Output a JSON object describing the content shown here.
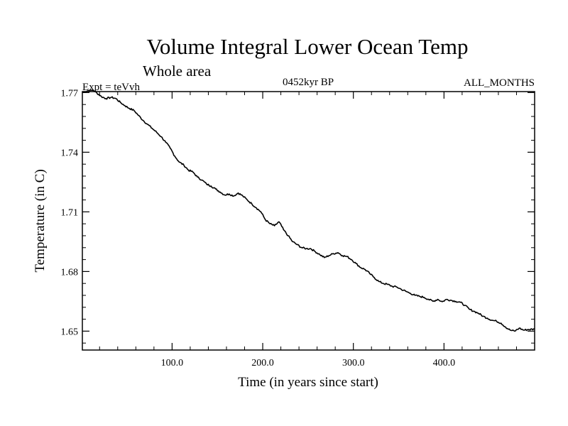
{
  "chart_data": {
    "type": "line",
    "title": "Volume Integral Lower Ocean Temp",
    "subtitle": "Whole area",
    "left_label": "Expt = teVvh",
    "center_label": "0452kyr BP",
    "right_label": "ALL_MONTHS",
    "xlabel": "Time (in years since start)",
    "ylabel": "Temperature (in C)",
    "xlim": [
      1,
      500
    ],
    "ylim": [
      1.6405,
      1.7705
    ],
    "x_ticks": [
      100,
      200,
      300,
      400
    ],
    "x_tick_labels": [
      "100.0",
      "200.0",
      "300.0",
      "400.0"
    ],
    "y_ticks": [
      1.65,
      1.68,
      1.71,
      1.74,
      1.77
    ],
    "y_tick_labels": [
      "1.65",
      "1.68",
      "1.71",
      "1.74",
      "1.77"
    ],
    "x_minor_step": 20,
    "y_minor_step": 0.006,
    "grid": false,
    "legend": "none",
    "line_color": "#000000",
    "series": [
      {
        "x": [
          1,
          8,
          13,
          17,
          22,
          27,
          33,
          38,
          43,
          48,
          53,
          58,
          63,
          68,
          73,
          78,
          83,
          88,
          93,
          98,
          103,
          108,
          113,
          118,
          123,
          128,
          133,
          138,
          143,
          148,
          153,
          158,
          163,
          168,
          173,
          178,
          183,
          188,
          193,
          198,
          203,
          208,
          213,
          218,
          223,
          228,
          233,
          238,
          243,
          248,
          253,
          258,
          263,
          268,
          273,
          278,
          283,
          288,
          293,
          298,
          303,
          308,
          313,
          318,
          323,
          328,
          333,
          338,
          343,
          348,
          353,
          358,
          363,
          368,
          373,
          378,
          383,
          388,
          393,
          398,
          403,
          408,
          413,
          418,
          423,
          428,
          433,
          438,
          443,
          448,
          453,
          458,
          463,
          468,
          473,
          478,
          483,
          488,
          493,
          500
        ],
        "y": [
          1.77,
          1.771,
          1.7712,
          1.7698,
          1.768,
          1.767,
          1.7676,
          1.767,
          1.765,
          1.7634,
          1.762,
          1.761,
          1.7585,
          1.756,
          1.754,
          1.752,
          1.75,
          1.7478,
          1.745,
          1.742,
          1.738,
          1.735,
          1.7335,
          1.731,
          1.73,
          1.7275,
          1.726,
          1.724,
          1.723,
          1.7215,
          1.72,
          1.7185,
          1.719,
          1.718,
          1.7195,
          1.718,
          1.716,
          1.714,
          1.712,
          1.71,
          1.706,
          1.704,
          1.703,
          1.705,
          1.701,
          1.698,
          1.695,
          1.6935,
          1.692,
          1.6915,
          1.6915,
          1.69,
          1.6885,
          1.687,
          1.688,
          1.689,
          1.6895,
          1.688,
          1.6875,
          1.686,
          1.684,
          1.682,
          1.681,
          1.679,
          1.677,
          1.675,
          1.674,
          1.6735,
          1.6725,
          1.6722,
          1.671,
          1.67,
          1.669,
          1.668,
          1.6675,
          1.667,
          1.666,
          1.665,
          1.666,
          1.6648,
          1.666,
          1.6655,
          1.665,
          1.6645,
          1.663,
          1.661,
          1.66,
          1.659,
          1.6575,
          1.6565,
          1.6555,
          1.655,
          1.654,
          1.652,
          1.6505,
          1.65,
          1.6515,
          1.6505,
          1.6508,
          1.651
        ]
      }
    ]
  }
}
